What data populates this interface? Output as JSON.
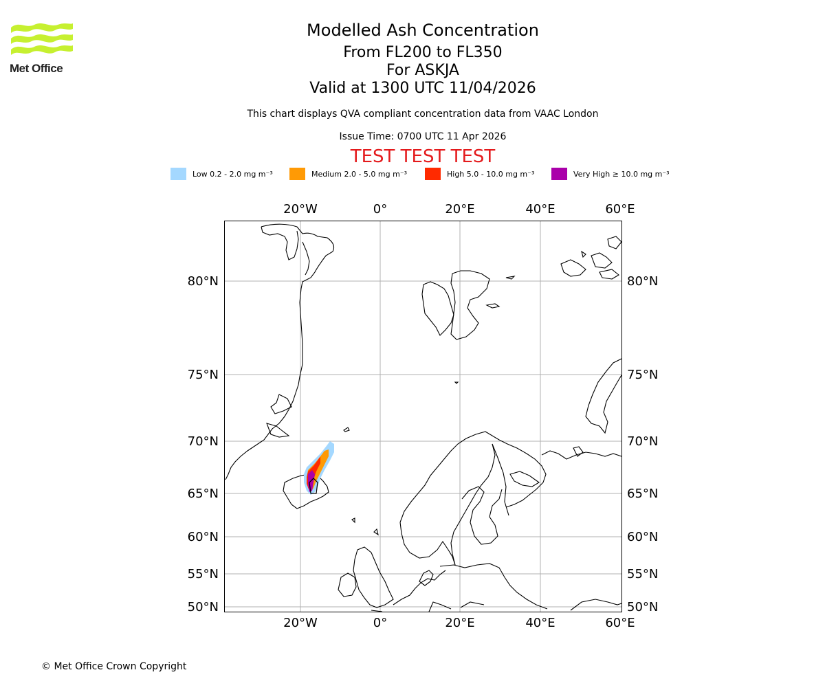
{
  "logo": {
    "name": "Met Office",
    "color": "#c6f030"
  },
  "header": {
    "title": "Modelled Ash Concentration",
    "level_range": "From FL200 to FL350",
    "volcano": "For ASKJA",
    "valid_time": "Valid at 1300 UTC 11/04/2026",
    "description": "This chart displays QVA compliant concentration data from VAAC London",
    "issue_time": "Issue Time: 0700 UTC 11 Apr 2026",
    "test_banner": "TEST TEST TEST",
    "test_color": "#e41a1c"
  },
  "legend": {
    "items": [
      {
        "label": "Low 0.2 - 2.0 mg m⁻³",
        "color": "#a4d8ff"
      },
      {
        "label": "Medium 2.0 - 5.0 mg m⁻³",
        "color": "#ff9a05"
      },
      {
        "label": "High 5.0 - 10.0 mg m⁻³",
        "color": "#ff2a00"
      },
      {
        "label": "Very High  ≥  10.0 mg m⁻³",
        "color": "#aa00aa"
      }
    ]
  },
  "map": {
    "lon_ticks": [
      "20°W",
      "0°",
      "20°E",
      "40°E",
      "60°E"
    ],
    "lat_ticks": [
      "80°N",
      "75°N",
      "70°N",
      "65°N",
      "60°N",
      "55°N",
      "50°N"
    ],
    "coastline_color": "#000000",
    "gridline_color": "#b0b0b0"
  },
  "footer": {
    "copyright": "© Met Office Crown Copyright"
  }
}
